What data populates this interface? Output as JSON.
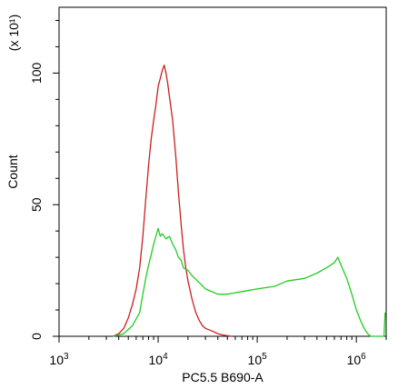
{
  "chart_data": {
    "type": "line",
    "title": "",
    "xlabel": "PC5.5 B690-A",
    "ylabel": "Count",
    "y_multiplier_label": "(x 10¹)",
    "x_scale": "log",
    "xlim": [
      1000,
      2000000
    ],
    "ylim": [
      0,
      125
    ],
    "grid": false,
    "legend": "none",
    "x_ticks": [
      {
        "value": 1000,
        "base": "10",
        "exp": "3"
      },
      {
        "value": 10000,
        "base": "10",
        "exp": "4"
      },
      {
        "value": 100000,
        "base": "10",
        "exp": "5"
      },
      {
        "value": 1000000,
        "base": "10",
        "exp": "6"
      }
    ],
    "y_ticks": [
      {
        "value": 0,
        "label": "0"
      },
      {
        "value": 50,
        "label": "50"
      },
      {
        "value": 100,
        "label": "100"
      }
    ],
    "series": [
      {
        "color": "#cc1f1f",
        "points": [
          [
            3500,
            0
          ],
          [
            4000,
            1
          ],
          [
            4500,
            3
          ],
          [
            5000,
            7
          ],
          [
            5500,
            12
          ],
          [
            6000,
            18
          ],
          [
            6500,
            26
          ],
          [
            7000,
            38
          ],
          [
            7500,
            52
          ],
          [
            8000,
            65
          ],
          [
            8500,
            75
          ],
          [
            9000,
            82
          ],
          [
            9500,
            88
          ],
          [
            10000,
            95
          ],
          [
            10500,
            98
          ],
          [
            11000,
            101
          ],
          [
            11500,
            103
          ],
          [
            12000,
            100
          ],
          [
            12500,
            96
          ],
          [
            13000,
            91
          ],
          [
            14000,
            82
          ],
          [
            15000,
            69
          ],
          [
            16000,
            55
          ],
          [
            17000,
            43
          ],
          [
            18000,
            33
          ],
          [
            19000,
            26
          ],
          [
            20000,
            21
          ],
          [
            22000,
            14
          ],
          [
            24000,
            9
          ],
          [
            26000,
            6
          ],
          [
            28000,
            4
          ],
          [
            30000,
            3
          ],
          [
            35000,
            2
          ],
          [
            40000,
            1
          ],
          [
            45000,
            0.5
          ],
          [
            55000,
            0
          ]
        ]
      },
      {
        "color": "#22cc22",
        "points": [
          [
            3500,
            0
          ],
          [
            4500,
            1
          ],
          [
            5500,
            4
          ],
          [
            6500,
            9
          ],
          [
            7000,
            16
          ],
          [
            7500,
            22
          ],
          [
            8000,
            27
          ],
          [
            8500,
            31
          ],
          [
            9000,
            35
          ],
          [
            9500,
            38
          ],
          [
            10000,
            41
          ],
          [
            10500,
            38
          ],
          [
            11000,
            39
          ],
          [
            12000,
            37
          ],
          [
            13000,
            38
          ],
          [
            14000,
            35
          ],
          [
            15000,
            33
          ],
          [
            16000,
            30
          ],
          [
            17000,
            29
          ],
          [
            18000,
            26
          ],
          [
            20000,
            25
          ],
          [
            22000,
            23
          ],
          [
            25000,
            21
          ],
          [
            30000,
            18
          ],
          [
            40000,
            16
          ],
          [
            50000,
            16
          ],
          [
            70000,
            17
          ],
          [
            100000,
            18
          ],
          [
            150000,
            19
          ],
          [
            200000,
            21
          ],
          [
            300000,
            22
          ],
          [
            400000,
            24
          ],
          [
            500000,
            26
          ],
          [
            600000,
            28
          ],
          [
            650000,
            30
          ],
          [
            700000,
            27
          ],
          [
            800000,
            22
          ],
          [
            900000,
            16
          ],
          [
            1000000,
            10
          ],
          [
            1100000,
            6
          ],
          [
            1200000,
            3
          ],
          [
            1300000,
            1
          ],
          [
            1400000,
            0
          ],
          [
            1900000,
            0
          ],
          [
            1950000,
            9
          ]
        ]
      }
    ]
  }
}
